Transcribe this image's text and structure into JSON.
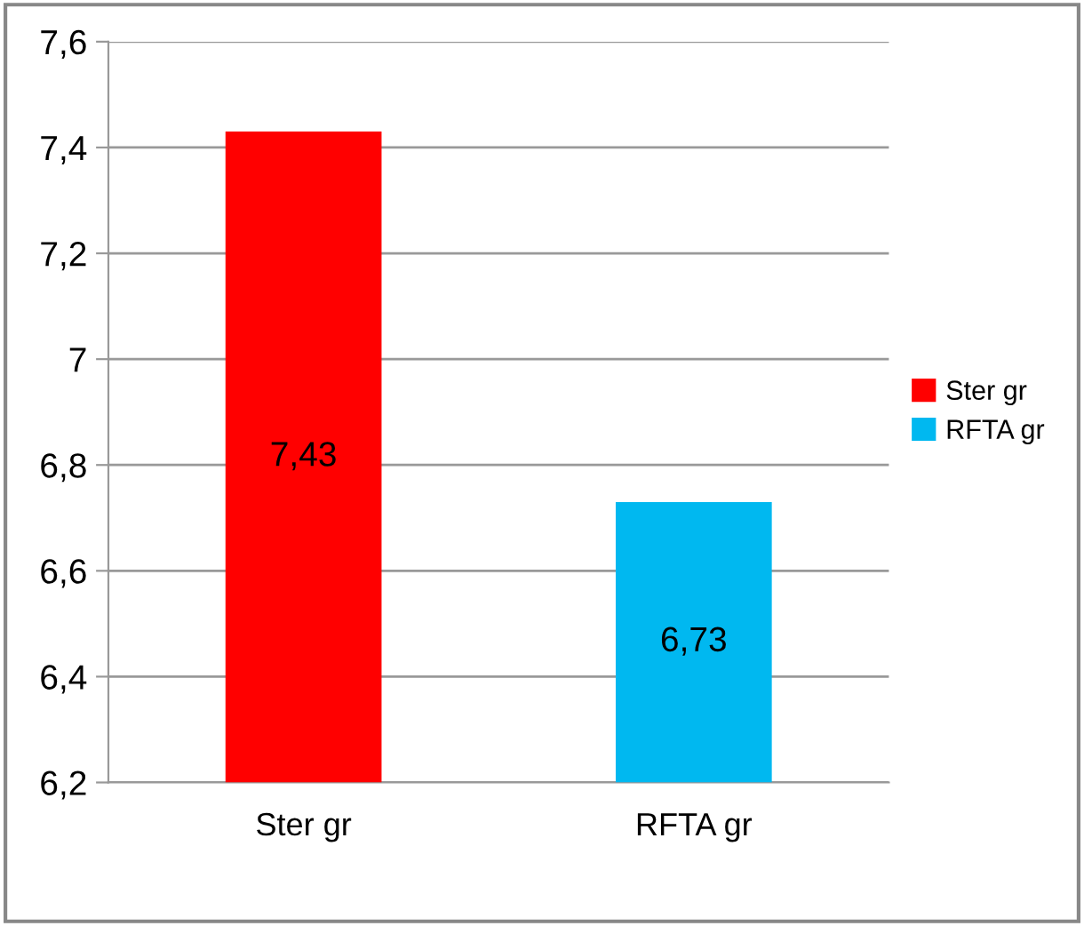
{
  "chart_data": {
    "type": "bar",
    "categories": [
      "Ster gr",
      "RFTA gr"
    ],
    "series": [
      {
        "name": "Ster gr",
        "color": "#ff0000",
        "values": [
          7.43,
          null
        ],
        "value_labels": [
          "7,43",
          null
        ]
      },
      {
        "name": "RFTA gr",
        "color": "#00b8f0",
        "values": [
          null,
          6.73
        ],
        "value_labels": [
          null,
          "6,73"
        ]
      }
    ],
    "ylim": [
      6.2,
      7.6
    ],
    "yticks": [
      {
        "value": 6.2,
        "label": "6,2"
      },
      {
        "value": 6.4,
        "label": "6,4"
      },
      {
        "value": 6.6,
        "label": "6,6"
      },
      {
        "value": 6.8,
        "label": "6,8"
      },
      {
        "value": 7,
        "label": "7"
      },
      {
        "value": 7.2,
        "label": "7,2"
      },
      {
        "value": 7.4,
        "label": "7,4"
      },
      {
        "value": 7.6,
        "label": "7,6"
      }
    ],
    "grid": "y",
    "legend": "right"
  }
}
